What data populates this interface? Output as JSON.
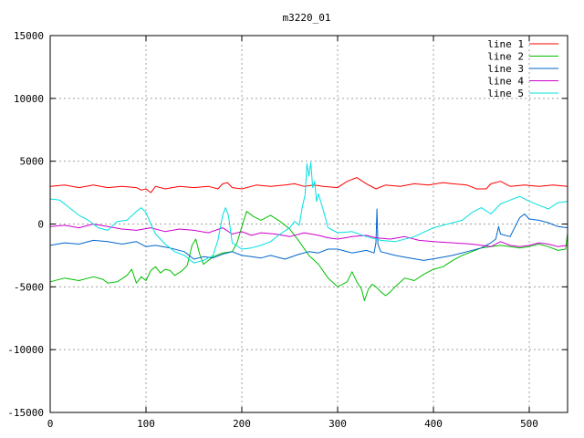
{
  "chart_data": {
    "type": "line",
    "title": "m3220_01",
    "xlabel": "",
    "ylabel": "",
    "xlim": [
      0,
      540
    ],
    "ylim": [
      -15000,
      15000
    ],
    "x_ticks": [
      0,
      100,
      200,
      300,
      400,
      500
    ],
    "y_ticks": [
      -15000,
      -10000,
      -5000,
      0,
      5000,
      10000,
      15000
    ],
    "grid": true,
    "legend_position": "top-right",
    "series": [
      {
        "name": "line 1",
        "color": "#ff0000",
        "points": [
          [
            0,
            3000
          ],
          [
            15,
            3100
          ],
          [
            30,
            2900
          ],
          [
            45,
            3100
          ],
          [
            60,
            2900
          ],
          [
            75,
            3000
          ],
          [
            90,
            2900
          ],
          [
            95,
            2700
          ],
          [
            100,
            2800
          ],
          [
            105,
            2500
          ],
          [
            110,
            3000
          ],
          [
            120,
            2800
          ],
          [
            135,
            3000
          ],
          [
            150,
            2900
          ],
          [
            165,
            3000
          ],
          [
            175,
            2800
          ],
          [
            180,
            3200
          ],
          [
            185,
            3300
          ],
          [
            190,
            2900
          ],
          [
            200,
            2800
          ],
          [
            215,
            3100
          ],
          [
            230,
            3000
          ],
          [
            245,
            3100
          ],
          [
            255,
            3200
          ],
          [
            265,
            3000
          ],
          [
            275,
            3100
          ],
          [
            285,
            3000
          ],
          [
            300,
            2900
          ],
          [
            310,
            3400
          ],
          [
            320,
            3700
          ],
          [
            330,
            3200
          ],
          [
            340,
            2800
          ],
          [
            350,
            3100
          ],
          [
            365,
            3000
          ],
          [
            380,
            3200
          ],
          [
            395,
            3100
          ],
          [
            410,
            3300
          ],
          [
            420,
            3200
          ],
          [
            435,
            3100
          ],
          [
            445,
            2800
          ],
          [
            455,
            2800
          ],
          [
            460,
            3200
          ],
          [
            470,
            3400
          ],
          [
            480,
            3000
          ],
          [
            495,
            3100
          ],
          [
            510,
            3000
          ],
          [
            525,
            3100
          ],
          [
            540,
            3000
          ]
        ]
      },
      {
        "name": "line 2",
        "color": "#00c000",
        "points": [
          [
            0,
            -4600
          ],
          [
            15,
            -4300
          ],
          [
            30,
            -4500
          ],
          [
            45,
            -4200
          ],
          [
            55,
            -4400
          ],
          [
            60,
            -4700
          ],
          [
            70,
            -4600
          ],
          [
            80,
            -4100
          ],
          [
            85,
            -3600
          ],
          [
            90,
            -4700
          ],
          [
            95,
            -4200
          ],
          [
            100,
            -4500
          ],
          [
            105,
            -3700
          ],
          [
            110,
            -3400
          ],
          [
            115,
            -3900
          ],
          [
            120,
            -3600
          ],
          [
            125,
            -3700
          ],
          [
            130,
            -4100
          ],
          [
            138,
            -3700
          ],
          [
            143,
            -3300
          ],
          [
            148,
            -1700
          ],
          [
            152,
            -1200
          ],
          [
            156,
            -2400
          ],
          [
            160,
            -3200
          ],
          [
            170,
            -2600
          ],
          [
            180,
            -2300
          ],
          [
            190,
            -2200
          ],
          [
            195,
            -1500
          ],
          [
            200,
            -200
          ],
          [
            205,
            1000
          ],
          [
            212,
            600
          ],
          [
            220,
            300
          ],
          [
            230,
            700
          ],
          [
            240,
            200
          ],
          [
            250,
            -400
          ],
          [
            260,
            -1400
          ],
          [
            270,
            -2500
          ],
          [
            280,
            -3200
          ],
          [
            290,
            -4300
          ],
          [
            300,
            -5000
          ],
          [
            310,
            -4600
          ],
          [
            315,
            -3800
          ],
          [
            320,
            -4600
          ],
          [
            325,
            -5200
          ],
          [
            328,
            -6100
          ],
          [
            332,
            -5200
          ],
          [
            336,
            -4800
          ],
          [
            340,
            -5000
          ],
          [
            345,
            -5400
          ],
          [
            350,
            -5700
          ],
          [
            355,
            -5400
          ],
          [
            360,
            -5000
          ],
          [
            370,
            -4300
          ],
          [
            380,
            -4500
          ],
          [
            390,
            -4000
          ],
          [
            400,
            -3600
          ],
          [
            410,
            -3400
          ],
          [
            420,
            -2900
          ],
          [
            430,
            -2500
          ],
          [
            440,
            -2200
          ],
          [
            450,
            -1900
          ],
          [
            460,
            -1800
          ],
          [
            470,
            -1700
          ],
          [
            480,
            -1800
          ],
          [
            490,
            -1900
          ],
          [
            500,
            -1800
          ],
          [
            510,
            -1600
          ],
          [
            520,
            -1800
          ],
          [
            530,
            -2100
          ],
          [
            538,
            -2000
          ],
          [
            540,
            -700
          ]
        ]
      },
      {
        "name": "line 3",
        "color": "#0066cc",
        "points": [
          [
            0,
            -1700
          ],
          [
            15,
            -1500
          ],
          [
            30,
            -1600
          ],
          [
            45,
            -1300
          ],
          [
            60,
            -1400
          ],
          [
            75,
            -1600
          ],
          [
            90,
            -1400
          ],
          [
            100,
            -1800
          ],
          [
            110,
            -1700
          ],
          [
            125,
            -1900
          ],
          [
            140,
            -2200
          ],
          [
            150,
            -2800
          ],
          [
            160,
            -2600
          ],
          [
            170,
            -2700
          ],
          [
            180,
            -2400
          ],
          [
            190,
            -2200
          ],
          [
            200,
            -2500
          ],
          [
            210,
            -2600
          ],
          [
            220,
            -2700
          ],
          [
            230,
            -2500
          ],
          [
            245,
            -2800
          ],
          [
            260,
            -2400
          ],
          [
            270,
            -2200
          ],
          [
            280,
            -2300
          ],
          [
            290,
            -2000
          ],
          [
            300,
            -2000
          ],
          [
            315,
            -2300
          ],
          [
            330,
            -2100
          ],
          [
            338,
            -2300
          ],
          [
            340,
            -1500
          ],
          [
            341,
            1200
          ],
          [
            342,
            -1600
          ],
          [
            345,
            -2200
          ],
          [
            360,
            -2500
          ],
          [
            375,
            -2700
          ],
          [
            390,
            -2900
          ],
          [
            405,
            -2700
          ],
          [
            420,
            -2500
          ],
          [
            435,
            -2200
          ],
          [
            450,
            -1900
          ],
          [
            460,
            -1500
          ],
          [
            465,
            -1200
          ],
          [
            468,
            -200
          ],
          [
            470,
            -800
          ],
          [
            480,
            -1000
          ],
          [
            490,
            500
          ],
          [
            495,
            800
          ],
          [
            500,
            400
          ],
          [
            510,
            300
          ],
          [
            520,
            100
          ],
          [
            530,
            -200
          ],
          [
            540,
            -300
          ]
        ]
      },
      {
        "name": "line 4",
        "color": "#cc00cc",
        "points": [
          [
            0,
            -200
          ],
          [
            15,
            -100
          ],
          [
            30,
            -300
          ],
          [
            45,
            0
          ],
          [
            60,
            -200
          ],
          [
            75,
            -400
          ],
          [
            90,
            -500
          ],
          [
            105,
            -300
          ],
          [
            120,
            -600
          ],
          [
            135,
            -400
          ],
          [
            150,
            -500
          ],
          [
            165,
            -700
          ],
          [
            180,
            -300
          ],
          [
            190,
            -800
          ],
          [
            200,
            -600
          ],
          [
            210,
            -900
          ],
          [
            220,
            -700
          ],
          [
            235,
            -800
          ],
          [
            250,
            -1000
          ],
          [
            265,
            -700
          ],
          [
            280,
            -900
          ],
          [
            290,
            -1100
          ],
          [
            300,
            -1200
          ],
          [
            315,
            -1000
          ],
          [
            330,
            -900
          ],
          [
            340,
            -1100
          ],
          [
            355,
            -1200
          ],
          [
            370,
            -1000
          ],
          [
            385,
            -1300
          ],
          [
            400,
            -1400
          ],
          [
            420,
            -1500
          ],
          [
            440,
            -1600
          ],
          [
            460,
            -1800
          ],
          [
            470,
            -1400
          ],
          [
            480,
            -1700
          ],
          [
            490,
            -1800
          ],
          [
            500,
            -1700
          ],
          [
            510,
            -1500
          ],
          [
            520,
            -1600
          ],
          [
            530,
            -1800
          ],
          [
            540,
            -1700
          ]
        ]
      },
      {
        "name": "line 5",
        "color": "#00e0e0",
        "points": [
          [
            0,
            2000
          ],
          [
            10,
            1900
          ],
          [
            20,
            1300
          ],
          [
            30,
            700
          ],
          [
            40,
            300
          ],
          [
            50,
            -300
          ],
          [
            60,
            -500
          ],
          [
            70,
            200
          ],
          [
            80,
            300
          ],
          [
            90,
            1000
          ],
          [
            95,
            1300
          ],
          [
            100,
            900
          ],
          [
            105,
            0
          ],
          [
            110,
            -800
          ],
          [
            120,
            -1600
          ],
          [
            130,
            -2200
          ],
          [
            140,
            -2500
          ],
          [
            150,
            -3100
          ],
          [
            160,
            -2900
          ],
          [
            170,
            -2500
          ],
          [
            175,
            -1300
          ],
          [
            180,
            700
          ],
          [
            183,
            1300
          ],
          [
            186,
            700
          ],
          [
            190,
            -1500
          ],
          [
            200,
            -2000
          ],
          [
            210,
            -1900
          ],
          [
            220,
            -1700
          ],
          [
            230,
            -1400
          ],
          [
            240,
            -800
          ],
          [
            250,
            -300
          ],
          [
            255,
            200
          ],
          [
            260,
            -100
          ],
          [
            263,
            1300
          ],
          [
            266,
            2300
          ],
          [
            268,
            4800
          ],
          [
            270,
            3800
          ],
          [
            272,
            4900
          ],
          [
            274,
            2900
          ],
          [
            276,
            3400
          ],
          [
            278,
            1800
          ],
          [
            280,
            2400
          ],
          [
            285,
            1100
          ],
          [
            290,
            -300
          ],
          [
            300,
            -700
          ],
          [
            315,
            -600
          ],
          [
            330,
            -1000
          ],
          [
            345,
            -1300
          ],
          [
            360,
            -1400
          ],
          [
            380,
            -1000
          ],
          [
            400,
            -300
          ],
          [
            420,
            100
          ],
          [
            430,
            300
          ],
          [
            440,
            900
          ],
          [
            450,
            1300
          ],
          [
            460,
            800
          ],
          [
            470,
            1600
          ],
          [
            480,
            1900
          ],
          [
            490,
            2200
          ],
          [
            500,
            1800
          ],
          [
            510,
            1500
          ],
          [
            520,
            1200
          ],
          [
            530,
            1700
          ],
          [
            540,
            1800
          ]
        ]
      }
    ]
  }
}
